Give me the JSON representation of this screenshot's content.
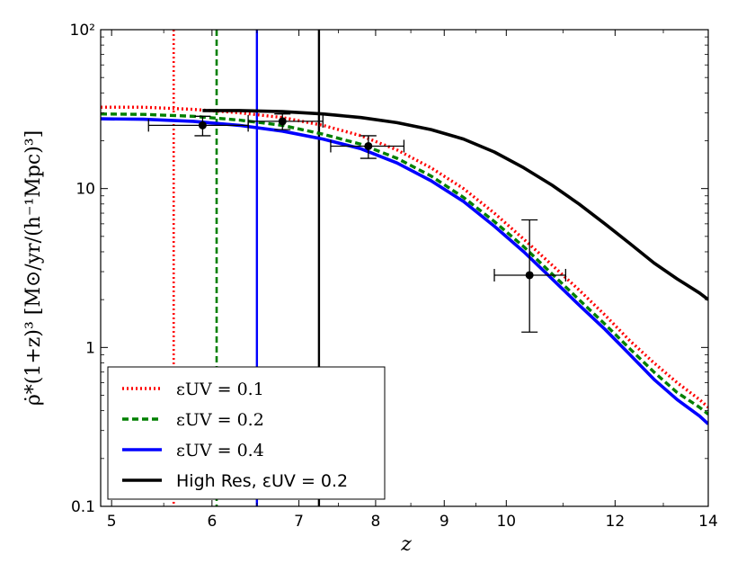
{
  "chart_data": {
    "type": "line",
    "xscale": "reciprocal (1+z)",
    "yscale": "log",
    "xlim": [
      4.9,
      14
    ],
    "ylim": [
      0.1,
      100
    ],
    "xlabel": "z",
    "ylabel": "ρ̇*(1+z)³ [M⊙/yr/(h⁻¹Mpc)³]",
    "x_ticks": [
      5,
      6,
      7,
      8,
      9,
      10,
      12,
      14
    ],
    "x_tick_labels": [
      "5",
      "6",
      "7",
      "8",
      "9",
      "10",
      "12",
      "14"
    ],
    "y_ticks": [
      0.1,
      1,
      10,
      100
    ],
    "y_tick_labels": [
      "0.1",
      "1",
      "10",
      "10²"
    ],
    "legend_position": "lower-left",
    "series": [
      {
        "name": "εUV = 0.1",
        "color": "#ff0000",
        "style": "dotted",
        "x": [
          4.9,
          5.3,
          5.8,
          6.3,
          6.8,
          7.3,
          7.8,
          8.3,
          8.8,
          9.3,
          9.8,
          10.3,
          10.8,
          11.3,
          11.8,
          12.3,
          12.8,
          13.3,
          13.8,
          14
        ],
        "y": [
          32.5,
          32.5,
          31.5,
          30,
          28,
          25,
          21.5,
          17.5,
          13.5,
          10,
          7,
          4.8,
          3.3,
          2.3,
          1.6,
          1.1,
          0.8,
          0.6,
          0.47,
          0.42
        ]
      },
      {
        "name": "εUV = 0.2",
        "color": "#008000",
        "style": "dashed",
        "x": [
          4.9,
          5.3,
          5.8,
          6.3,
          6.8,
          7.3,
          7.8,
          8.3,
          8.8,
          9.3,
          9.8,
          10.3,
          10.8,
          11.3,
          11.8,
          12.3,
          12.8,
          13.3,
          13.8,
          14
        ],
        "y": [
          29.5,
          29.3,
          28.5,
          27,
          25,
          22,
          19,
          15.5,
          12,
          8.8,
          6.2,
          4.3,
          2.9,
          2,
          1.4,
          0.98,
          0.7,
          0.52,
          0.42,
          0.38
        ]
      },
      {
        "name": "εUV = 0.4",
        "color": "#0000ff",
        "style": "solid",
        "x": [
          4.9,
          5.3,
          5.8,
          6.3,
          6.8,
          7.3,
          7.8,
          8.3,
          8.8,
          9.3,
          9.8,
          10.3,
          10.8,
          11.3,
          11.8,
          12.3,
          12.8,
          13.3,
          13.8,
          14
        ],
        "y": [
          27.5,
          27.3,
          26.5,
          25,
          23,
          20.5,
          17.8,
          14.5,
          11.2,
          8.3,
          5.8,
          4,
          2.7,
          1.85,
          1.3,
          0.9,
          0.63,
          0.47,
          0.37,
          0.33
        ]
      },
      {
        "name": "High Res, εUV = 0.2",
        "color": "#000000",
        "style": "solid",
        "x": [
          5.9,
          6.3,
          6.8,
          7.3,
          7.8,
          8.3,
          8.8,
          9.3,
          9.8,
          10.3,
          10.8,
          11.3,
          11.8,
          12.3,
          12.8,
          13.3,
          13.8,
          14
        ],
        "y": [
          31,
          31,
          30.5,
          29.5,
          28,
          26,
          23.5,
          20.5,
          17,
          13.5,
          10.5,
          8,
          6,
          4.5,
          3.4,
          2.7,
          2.2,
          2
        ]
      }
    ],
    "vertical_lines": [
      {
        "x": 5.6,
        "color": "#ff0000",
        "style": "dotted"
      },
      {
        "x": 6.05,
        "color": "#008000",
        "style": "dashed"
      },
      {
        "x": 6.5,
        "color": "#0000ff",
        "style": "solid"
      },
      {
        "x": 7.25,
        "color": "#000000",
        "style": "solid"
      }
    ],
    "observations": [
      {
        "x": 5.9,
        "y": 25,
        "xerr": [
          0.55,
          0.5
        ],
        "yerr": [
          3.5,
          3.5
        ]
      },
      {
        "x": 6.8,
        "y": 26.5,
        "xerr": [
          0.4,
          0.5
        ],
        "yerr": [
          3,
          3
        ]
      },
      {
        "x": 7.9,
        "y": 18.5,
        "xerr": [
          0.5,
          0.5
        ],
        "yerr": [
          3,
          3
        ]
      },
      {
        "x": 10.4,
        "y": 2.85,
        "xerr": [
          0.6,
          0.65
        ],
        "yerr": [
          1.6,
          3.5
        ]
      }
    ]
  }
}
